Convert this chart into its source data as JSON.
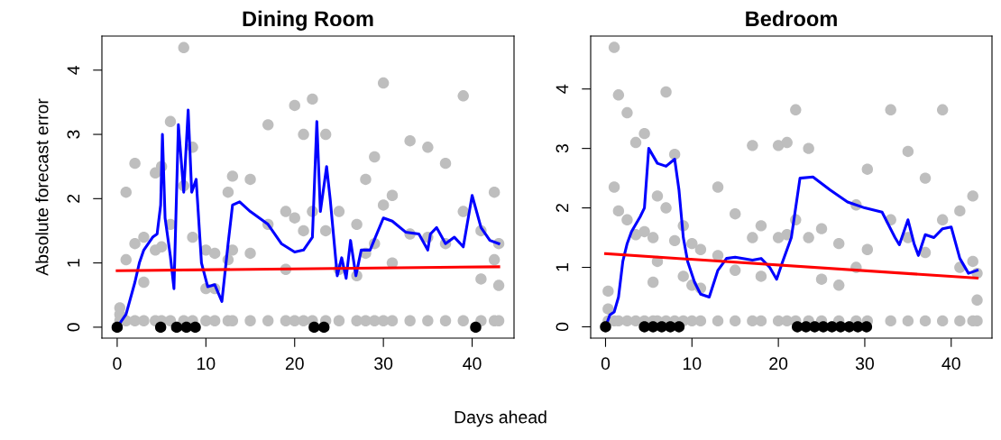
{
  "chart_data": [
    {
      "type": "scatter",
      "title": "Dining Room",
      "xlabel": "Days ahead",
      "ylabel": "Absolute forecast error",
      "xlim": [
        -1.72,
        44.72
      ],
      "ylim": [
        -0.17,
        4.53
      ],
      "xticks": [
        0,
        10,
        20,
        30,
        40
      ],
      "yticks": [
        0,
        1,
        2,
        3,
        4
      ],
      "grid": false,
      "series": [
        {
          "marker": "circle",
          "color": "#bebebe",
          "x": [
            0.3,
            0.3,
            0.3,
            1,
            1,
            1,
            2,
            2,
            2,
            3,
            3,
            3,
            4.3,
            4.3,
            4.3,
            5,
            5,
            5,
            6,
            6,
            6,
            7.5,
            7.5,
            7.5,
            8.5,
            8.5,
            8.5,
            10,
            10,
            10,
            11,
            11,
            11,
            12.5,
            12.5,
            12.5,
            13,
            13,
            13,
            15,
            15,
            15,
            17,
            17,
            17,
            19,
            19,
            19,
            20,
            20,
            20,
            21,
            21,
            21,
            22,
            22,
            22,
            23.5,
            23.5,
            23.5,
            25,
            25,
            25,
            27,
            27,
            27,
            28,
            28,
            28,
            29,
            29,
            29,
            30,
            30,
            30,
            31,
            31,
            31,
            33,
            33,
            33,
            35,
            35,
            35,
            37,
            37,
            37,
            39,
            39,
            39,
            41,
            41,
            41,
            42.5,
            42.5,
            42.5,
            43,
            43,
            43
          ],
          "values": [
            0.1,
            0.2,
            0.3,
            0.1,
            1.05,
            2.1,
            0.1,
            1.3,
            2.55,
            0.1,
            0.7,
            1.4,
            0.1,
            1.2,
            2.4,
            0.1,
            1.25,
            2.5,
            0.1,
            1.6,
            3.2,
            0.1,
            2.2,
            4.35,
            0.1,
            1.4,
            2.8,
            0.1,
            0.6,
            1.2,
            0.1,
            0.6,
            1.15,
            0.1,
            1.05,
            2.1,
            0.1,
            1.2,
            2.35,
            0.1,
            1.15,
            2.3,
            0.1,
            1.6,
            3.15,
            0.1,
            0.9,
            1.8,
            0.1,
            1.7,
            3.45,
            0.1,
            1.5,
            3.0,
            0.1,
            1.8,
            3.55,
            0.1,
            1.5,
            3.0,
            0.1,
            0.9,
            1.8,
            0.1,
            0.8,
            1.6,
            0.1,
            1.15,
            2.3,
            0.1,
            1.3,
            2.65,
            0.1,
            1.9,
            3.8,
            0.1,
            1.0,
            2.05,
            0.1,
            1.45,
            2.9,
            0.1,
            1.4,
            2.8,
            0.1,
            1.3,
            2.55,
            0.1,
            1.8,
            3.6,
            0.1,
            0.75,
            1.5,
            0.1,
            1.05,
            2.1,
            0.1,
            0.65,
            1.3
          ]
        },
        {
          "type": "line",
          "marker": "none",
          "line_style": "solid",
          "color": "#0000ff",
          "x": [
            0,
            1,
            2,
            2.5,
            3,
            4,
            4.5,
            4.9,
            5.1,
            5.4,
            6,
            6.4,
            6.9,
            7.5,
            8,
            8.4,
            8.9,
            9.5,
            10.2,
            11,
            11.8,
            12.5,
            13,
            13.8,
            15,
            17,
            18.5,
            20,
            21,
            22,
            22.5,
            22.9,
            23.6,
            24,
            24.8,
            25.3,
            25.8,
            26.3,
            26.9,
            27.5,
            28.5,
            30,
            31,
            32.5,
            34,
            35,
            35.3,
            36,
            37,
            38,
            39,
            40,
            41,
            42,
            43
          ],
          "values": [
            0,
            0.2,
            0.7,
            1.0,
            1.2,
            1.4,
            1.45,
            1.9,
            3.0,
            1.7,
            1.1,
            0.6,
            3.15,
            2.1,
            3.38,
            2.1,
            2.3,
            1.0,
            0.63,
            0.66,
            0.4,
            1.3,
            1.9,
            1.95,
            1.8,
            1.6,
            1.3,
            1.17,
            1.2,
            1.4,
            3.2,
            1.8,
            2.5,
            2.0,
            0.8,
            1.08,
            0.76,
            1.35,
            0.8,
            1.2,
            1.2,
            1.7,
            1.65,
            1.48,
            1.45,
            1.2,
            1.45,
            1.55,
            1.3,
            1.4,
            1.25,
            2.05,
            1.55,
            1.35,
            1.3
          ]
        },
        {
          "type": "line",
          "marker": "none",
          "line_style": "solid",
          "color": "#ff0000",
          "x": [
            0,
            43
          ],
          "values": [
            0.88,
            0.94
          ]
        },
        {
          "marker": "circle",
          "color": "#000000",
          "x": [
            0,
            4.9,
            6.7,
            7.8,
            8.8,
            22.2,
            23.3,
            40.4
          ],
          "values": [
            0,
            0,
            0,
            0,
            0,
            0,
            0,
            0
          ]
        }
      ]
    },
    {
      "type": "scatter",
      "title": "Bedroom",
      "xlim": [
        -1.72,
        44.72
      ],
      "ylim": [
        -0.19,
        4.89
      ],
      "xticks": [
        0,
        10,
        20,
        30,
        40
      ],
      "yticks": [
        0,
        1,
        2,
        3,
        4
      ],
      "grid": false,
      "series": [
        {
          "marker": "circle",
          "color": "#bebebe",
          "x": [
            0.3,
            0.3,
            0.3,
            1,
            1,
            1,
            1.5,
            1.5,
            1.5,
            2.5,
            2.5,
            2.5,
            3.5,
            3.5,
            3.5,
            4.5,
            4.5,
            4.5,
            5.5,
            5.5,
            5.5,
            6,
            6,
            6,
            7,
            7,
            7,
            8,
            8,
            8,
            9,
            9,
            9,
            10,
            10,
            10,
            11,
            11,
            11,
            13,
            13,
            13,
            15,
            15,
            15,
            17,
            17,
            17,
            18,
            18,
            18,
            20,
            20,
            20,
            21,
            21,
            21,
            22,
            22,
            22,
            23.5,
            23.5,
            23.5,
            25,
            25,
            25,
            27,
            27,
            27,
            29,
            29,
            29,
            30.3,
            30.3,
            30.3,
            33,
            33,
            33,
            35,
            35,
            35,
            37,
            37,
            37,
            39,
            39,
            39,
            41,
            41,
            41,
            42.5,
            42.5,
            42.5,
            43,
            43,
            43
          ],
          "values": [
            0.1,
            0.3,
            0.6,
            0.1,
            2.35,
            4.7,
            0.1,
            1.95,
            3.9,
            0.1,
            1.8,
            3.6,
            0.1,
            1.55,
            3.1,
            0.1,
            1.6,
            3.25,
            0.1,
            0.75,
            1.5,
            0.1,
            1.1,
            2.2,
            0.1,
            2.0,
            3.95,
            0.1,
            1.45,
            2.9,
            0.1,
            0.85,
            1.7,
            0.1,
            0.7,
            1.4,
            0.1,
            0.65,
            1.3,
            0.1,
            1.2,
            2.35,
            0.1,
            0.95,
            1.9,
            0.1,
            1.5,
            3.05,
            0.1,
            0.85,
            1.7,
            0.1,
            1.5,
            3.05,
            0.1,
            1.55,
            3.1,
            0.1,
            1.8,
            3.65,
            0.1,
            1.5,
            3.0,
            0.1,
            0.8,
            1.65,
            0.1,
            0.7,
            1.4,
            0.1,
            1.0,
            2.05,
            0.1,
            1.3,
            2.65,
            0.1,
            1.8,
            3.65,
            0.1,
            1.5,
            2.95,
            0.1,
            1.25,
            2.5,
            0.1,
            1.8,
            3.65,
            0.1,
            1.0,
            1.95,
            0.1,
            1.1,
            2.2,
            0.1,
            0.45,
            0.9
          ]
        },
        {
          "type": "line",
          "marker": "none",
          "line_style": "solid",
          "color": "#0000ff",
          "x": [
            0,
            0.5,
            1,
            1.5,
            2,
            2.5,
            3,
            4,
            4.5,
            5,
            6,
            7,
            8,
            8.5,
            9,
            9.5,
            10.3,
            11,
            12,
            13,
            14,
            15,
            17,
            18,
            19,
            19.8,
            20.5,
            21.5,
            22.5,
            24,
            26,
            28,
            30,
            32,
            33.5,
            34,
            35,
            35.7,
            36.2,
            37,
            38,
            39,
            40,
            41,
            42,
            43
          ],
          "values": [
            0,
            0.2,
            0.25,
            0.5,
            1.1,
            1.4,
            1.6,
            1.85,
            2.0,
            3.0,
            2.75,
            2.7,
            2.82,
            2.3,
            1.5,
            1.1,
            0.75,
            0.55,
            0.5,
            0.95,
            1.15,
            1.17,
            1.12,
            1.15,
            1.0,
            0.8,
            1.1,
            1.5,
            2.5,
            2.52,
            2.3,
            2.1,
            2.0,
            1.93,
            1.5,
            1.38,
            1.8,
            1.4,
            1.2,
            1.55,
            1.5,
            1.65,
            1.68,
            1.15,
            0.9,
            0.95
          ]
        },
        {
          "type": "line",
          "marker": "none",
          "line_style": "solid",
          "color": "#ff0000",
          "x": [
            0,
            43
          ],
          "values": [
            1.23,
            0.82
          ]
        },
        {
          "marker": "circle",
          "color": "#000000",
          "x": [
            0,
            4.5,
            5.5,
            6.5,
            7.5,
            8.5,
            22.2,
            23.2,
            24.2,
            25.2,
            26.2,
            27.2,
            28.2,
            29.2,
            30.2
          ],
          "values": [
            0,
            0,
            0,
            0,
            0,
            0,
            0,
            0,
            0,
            0,
            0,
            0,
            0,
            0,
            0
          ]
        }
      ]
    }
  ]
}
